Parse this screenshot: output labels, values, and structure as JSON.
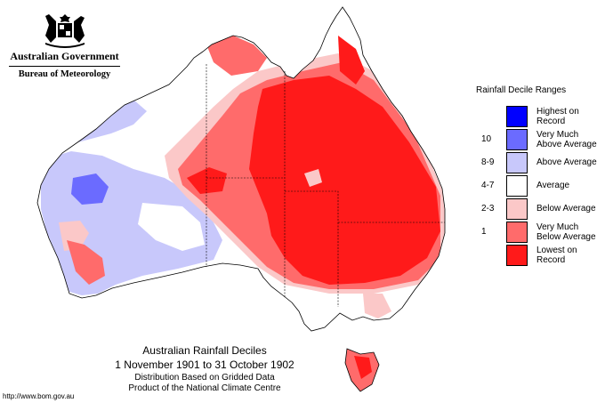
{
  "header": {
    "government": "Australian Government",
    "bureau": "Bureau of Meteorology"
  },
  "legend": {
    "title": "Rainfall Decile Ranges",
    "items": [
      {
        "range": "",
        "label": "Highest on Record",
        "color": "#0000ff"
      },
      {
        "range": "10",
        "label": "Very Much Above Average",
        "color": "#6b6bff"
      },
      {
        "range": "8-9",
        "label": "Above Average",
        "color": "#c8c8fb"
      },
      {
        "range": "4-7",
        "label": "Average",
        "color": "#ffffff"
      },
      {
        "range": "2-3",
        "label": "Below Average",
        "color": "#fbc8c8"
      },
      {
        "range": "1",
        "label": "Very Much Below Average",
        "color": "#ff6b6b"
      },
      {
        "range": "",
        "label": "Lowest on Record",
        "color": "#ff1a1a"
      }
    ]
  },
  "caption": {
    "title": "Australian Rainfall Deciles",
    "period": "1 November 1901 to 31 October 1902",
    "note": "Distribution Based on Gridded Data",
    "product": "Product of the National Climate Centre"
  },
  "footer": {
    "url": "http://www.bom.gov.au"
  }
}
